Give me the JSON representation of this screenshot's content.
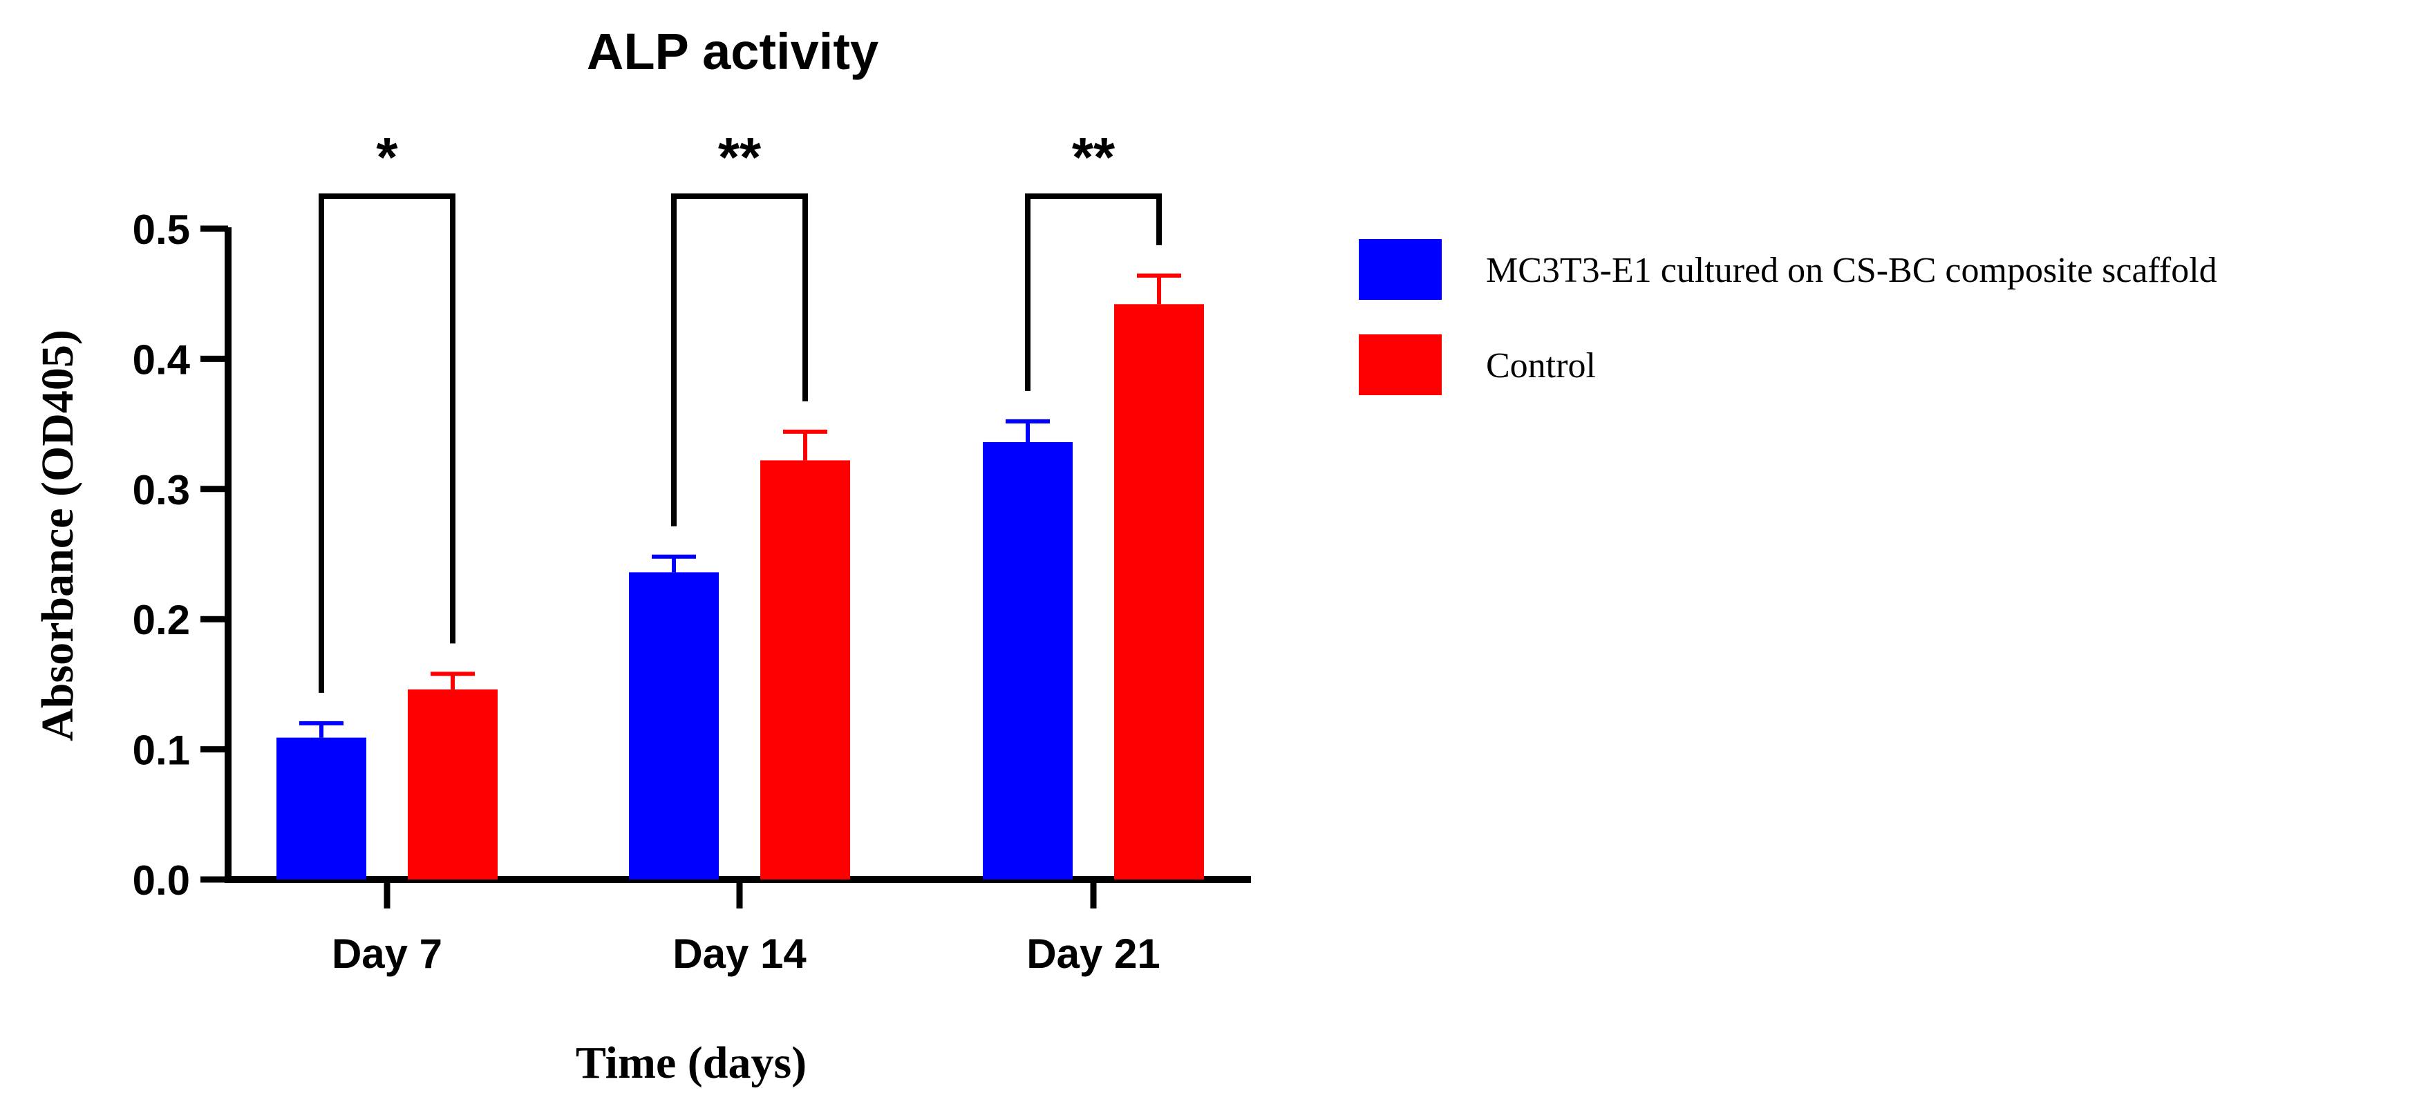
{
  "chart_data": {
    "type": "bar",
    "title": "ALP activity",
    "xlabel": "Time (days)",
    "ylabel": "Absorbance (OD405)",
    "ylim": [
      0,
      0.5
    ],
    "yticks": [
      "0.0",
      "0.1",
      "0.2",
      "0.3",
      "0.4",
      "0.5"
    ],
    "categories": [
      "Day 7",
      "Day 14",
      "Day 21"
    ],
    "series": [
      {
        "name": "MC3T3-E1 cultured on CS-BC composite scaffold",
        "color": "#0000ff",
        "values": [
          0.109,
          0.236,
          0.336
        ],
        "errors": [
          0.011,
          0.012,
          0.016
        ]
      },
      {
        "name": "Control",
        "color": "#ff0000",
        "values": [
          0.146,
          0.322,
          0.442
        ],
        "errors": [
          0.012,
          0.022,
          0.022
        ]
      }
    ],
    "significance": [
      {
        "category": "Day 7",
        "label": "*"
      },
      {
        "category": "Day 14",
        "label": "**"
      },
      {
        "category": "Day 21",
        "label": "**"
      }
    ],
    "legend_position": "right"
  }
}
